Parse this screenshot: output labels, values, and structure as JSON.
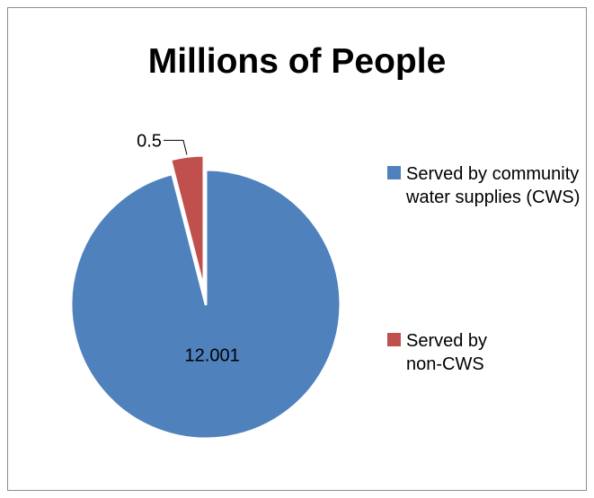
{
  "chart_data": {
    "type": "pie",
    "title": "Millions of People",
    "series": [
      {
        "values": [
          12.001,
          0.5
        ],
        "labels": [
          "12.001",
          "0.5"
        ]
      }
    ],
    "categories": [
      "Served by community water supplies (CWS)",
      "Served by non-CWS"
    ],
    "legend": {
      "position": "right",
      "entries": [
        "Served by community water supplies (CWS)",
        "Served by non-CWS"
      ]
    },
    "colors": [
      "#4f81bd",
      "#c0504d"
    ],
    "exploded_slice": 1
  }
}
